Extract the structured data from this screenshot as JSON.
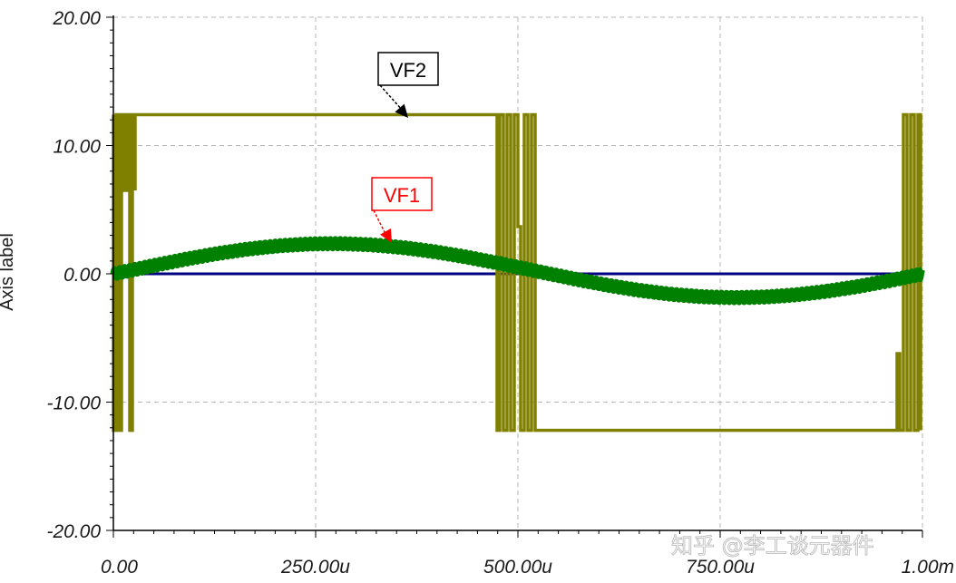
{
  "chart_data": {
    "type": "line",
    "ylabel": "Axis label",
    "xlim": [
      0,
      1000
    ],
    "ylim": [
      -20,
      20
    ],
    "x_ticks": [
      {
        "value": 0,
        "label": "0.00"
      },
      {
        "value": 250,
        "label": "250.00u"
      },
      {
        "value": 500,
        "label": "500.00u"
      },
      {
        "value": 750,
        "label": "750.00u"
      },
      {
        "value": 1000,
        "label": "1.00m"
      }
    ],
    "y_ticks": [
      {
        "value": 20,
        "label": "20.00"
      },
      {
        "value": 10,
        "label": "10.00"
      },
      {
        "value": 0,
        "label": "0.00"
      },
      {
        "value": -10,
        "label": "-10.00"
      },
      {
        "value": -20,
        "label": "-20.00"
      }
    ],
    "grid": true,
    "series": [
      {
        "name": "VF1",
        "color": "#008000",
        "kind": "sine-with-ripple",
        "amplitude": 2.1,
        "ripple": 0.35,
        "x": [
          0,
          125,
          250,
          375,
          500,
          625,
          750,
          875,
          1000
        ],
        "y": [
          0.3,
          1.5,
          2.1,
          1.5,
          0.2,
          -1.3,
          -2.0,
          -1.4,
          0.0
        ]
      },
      {
        "name": "VF2",
        "color": "#808000",
        "kind": "comparator-square",
        "high": 12.4,
        "low": -12.2,
        "x": [
          0,
          30,
          470,
          530,
          985,
          1000
        ],
        "y": [
          12.4,
          12.4,
          12.4,
          -12.2,
          -12.2,
          12.4
        ]
      },
      {
        "name": "",
        "color": "#000080",
        "kind": "flat",
        "x": [
          0,
          1000
        ],
        "y": [
          0,
          0
        ]
      }
    ],
    "annotations": [
      {
        "text": "VF2",
        "text_color": "#000000",
        "border_color": "#000000",
        "points_to": {
          "x": 365,
          "y": 12.4
        }
      },
      {
        "text": "VF1",
        "text_color": "#ff0000",
        "border_color": "#ff0000",
        "points_to": {
          "x": 345,
          "y": 2.2
        }
      }
    ]
  },
  "watermark": {
    "text": "知乎 @李工谈元器件"
  }
}
